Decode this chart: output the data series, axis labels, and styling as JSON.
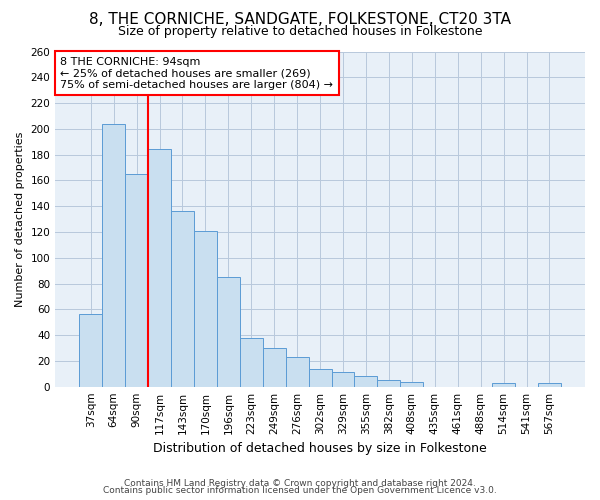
{
  "title1": "8, THE CORNICHE, SANDGATE, FOLKESTONE, CT20 3TA",
  "title2": "Size of property relative to detached houses in Folkestone",
  "xlabel": "Distribution of detached houses by size in Folkestone",
  "ylabel": "Number of detached properties",
  "categories": [
    "37sqm",
    "64sqm",
    "90sqm",
    "117sqm",
    "143sqm",
    "170sqm",
    "196sqm",
    "223sqm",
    "249sqm",
    "276sqm",
    "302sqm",
    "329sqm",
    "355sqm",
    "382sqm",
    "408sqm",
    "435sqm",
    "461sqm",
    "488sqm",
    "514sqm",
    "541sqm",
    "567sqm"
  ],
  "values": [
    56,
    204,
    165,
    184,
    136,
    121,
    85,
    38,
    30,
    23,
    14,
    11,
    8,
    5,
    4,
    0,
    0,
    0,
    3,
    0,
    3
  ],
  "bar_color": "#c9dff0",
  "bar_edge_color": "#5b9bd5",
  "grid_color": "#b8c8dc",
  "background_color": "#e8f0f8",
  "vline_color": "red",
  "vline_xindex": 2,
  "annotation_line1": "8 THE CORNICHE: 94sqm",
  "annotation_line2": "← 25% of detached houses are smaller (269)",
  "annotation_line3": "75% of semi-detached houses are larger (804) →",
  "annotation_box_color": "white",
  "annotation_box_edge": "red",
  "ylim": [
    0,
    260
  ],
  "yticks": [
    0,
    20,
    40,
    60,
    80,
    100,
    120,
    140,
    160,
    180,
    200,
    220,
    240,
    260
  ],
  "title1_fontsize": 11,
  "title2_fontsize": 9,
  "ylabel_fontsize": 8,
  "xlabel_fontsize": 9,
  "tick_fontsize": 7.5,
  "footer1": "Contains HM Land Registry data © Crown copyright and database right 2024.",
  "footer2": "Contains public sector information licensed under the Open Government Licence v3.0.",
  "footer_fontsize": 6.5
}
